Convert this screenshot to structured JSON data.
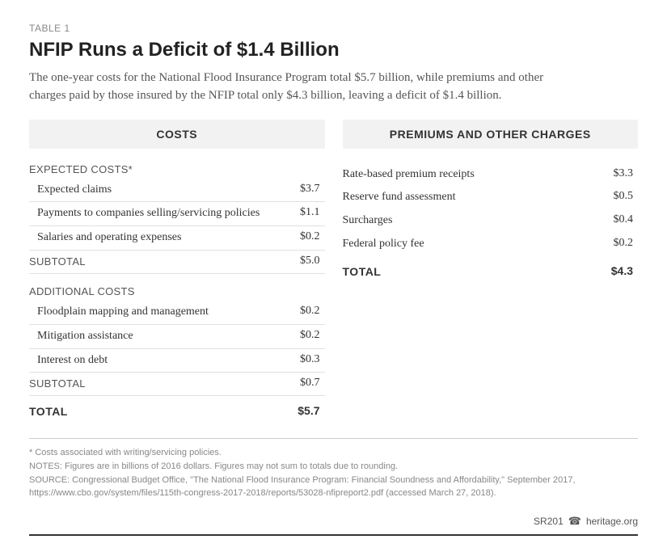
{
  "table_label": "TABLE 1",
  "title": "NFIP Runs a Deficit of $1.4 Billion",
  "description": "The one-year costs for the National Flood Insurance Program total $5.7 billion, while premiums and other charges paid by those insured by the NFIP total only $4.3 billion, leaving a deficit of $1.4 billion.",
  "costs": {
    "header": "COSTS",
    "expected_label": "EXPECTED COSTS*",
    "expected_rows": [
      {
        "label": "Expected claims",
        "value": "$3.7"
      },
      {
        "label": "Payments to companies selling/servicing policies",
        "value": "$1.1"
      },
      {
        "label": "Salaries and operating expenses",
        "value": "$0.2"
      }
    ],
    "expected_subtotal_label": "SUBTOTAL",
    "expected_subtotal_value": "$5.0",
    "additional_label": "ADDITIONAL COSTS",
    "additional_rows": [
      {
        "label": "Floodplain mapping and management",
        "value": "$0.2"
      },
      {
        "label": "Mitigation assistance",
        "value": "$0.2"
      },
      {
        "label": "Interest on debt",
        "value": "$0.3"
      }
    ],
    "additional_subtotal_label": "SUBTOTAL",
    "additional_subtotal_value": "$0.7",
    "total_label": "TOTAL",
    "total_value": "$5.7"
  },
  "premiums": {
    "header": "PREMIUMS AND OTHER CHARGES",
    "rows": [
      {
        "label": "Rate-based premium receipts",
        "value": "$3.3"
      },
      {
        "label": "Reserve fund assessment",
        "value": "$0.5"
      },
      {
        "label": "Surcharges",
        "value": "$0.4"
      },
      {
        "label": "Federal policy fee",
        "value": "$0.2"
      }
    ],
    "total_label": "TOTAL",
    "total_value": "$4.3"
  },
  "footnotes": {
    "asterisk": "* Costs associated with writing/servicing policies.",
    "notes": "NOTES: Figures are in billions of 2016 dollars. Figures may not sum to totals due to rounding.",
    "source": "SOURCE: Congressional Budget Office, \"The National Flood Insurance Program: Financial Soundness and Affordability,\" September 2017, https://www.cbo.gov/system/files/115th-congress-2017-2018/reports/53028-nfipreport2.pdf (accessed March 27, 2018)."
  },
  "footer": {
    "code": "SR201",
    "site": "heritage.org"
  }
}
